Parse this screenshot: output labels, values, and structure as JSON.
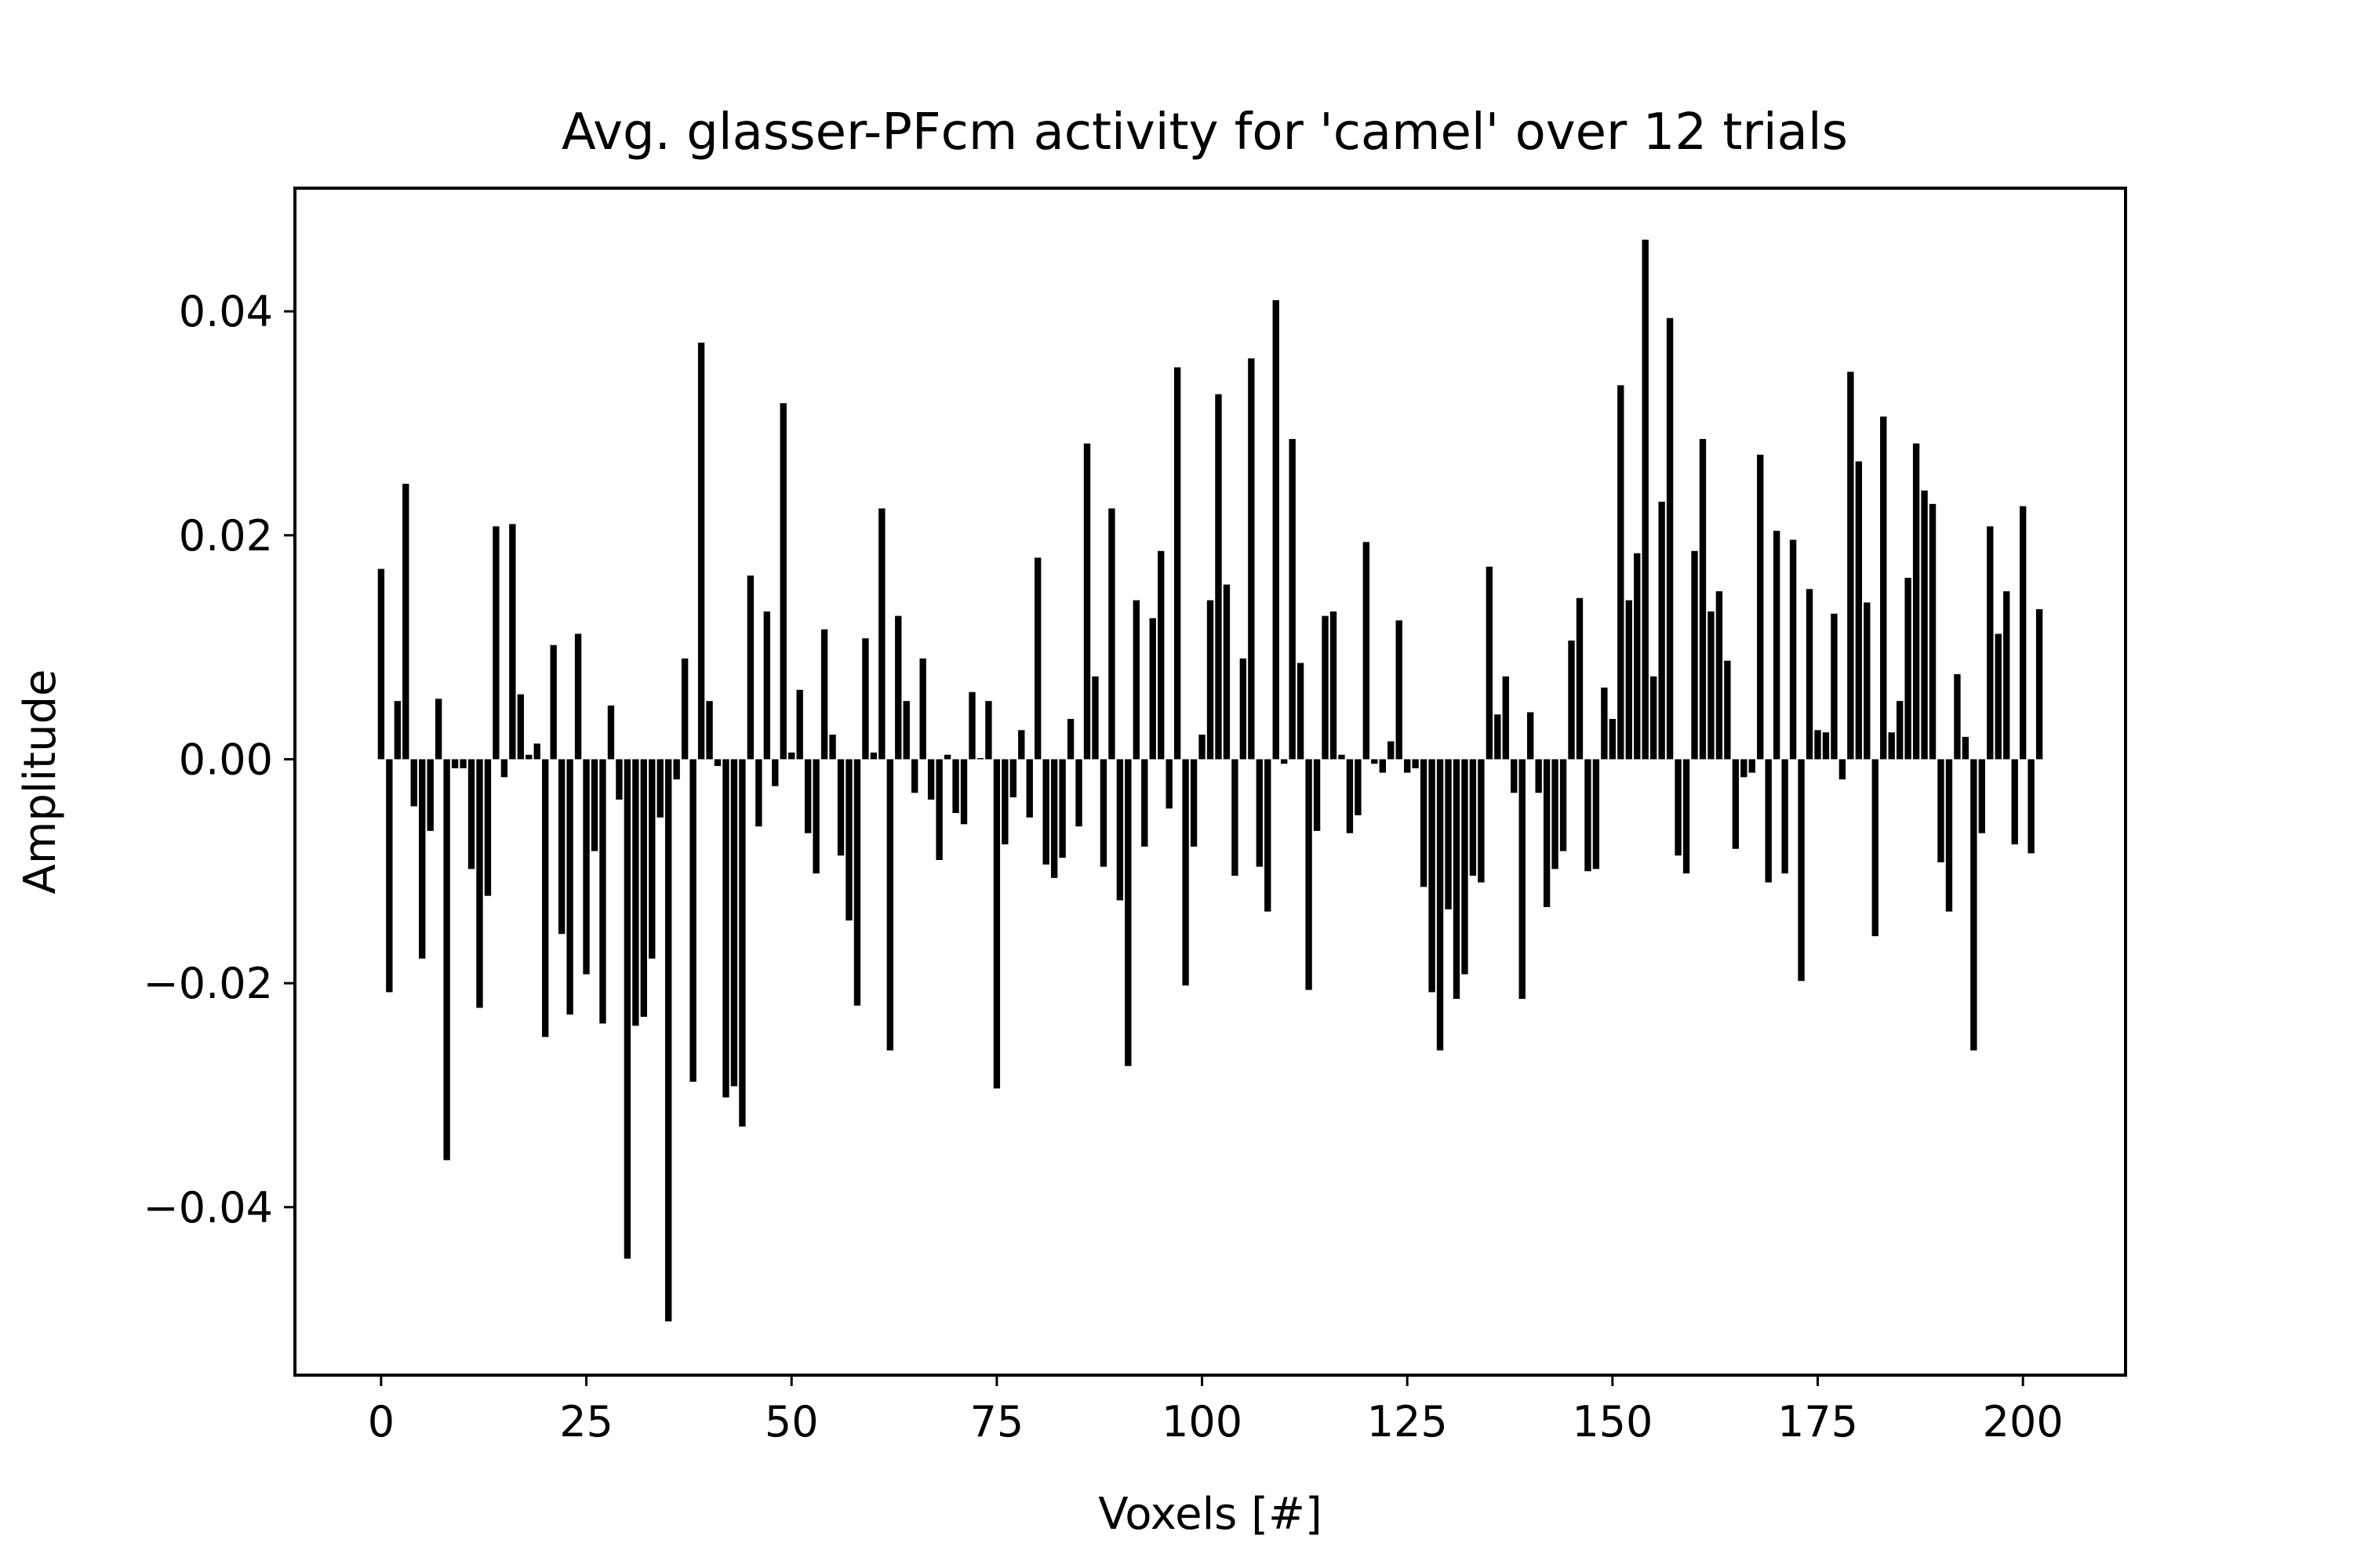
{
  "chart_data": {
    "type": "bar",
    "title": "Avg. glasser-PFcm activity for 'camel' over 12 trials",
    "xlabel": "Voxels [#]",
    "ylabel": "Amplitude",
    "xlim": [
      -10.5,
      212.5
    ],
    "ylim": [
      -0.055,
      0.051
    ],
    "xticks": [
      0,
      25,
      50,
      75,
      100,
      125,
      150,
      175,
      200
    ],
    "xtick_labels": [
      "0",
      "25",
      "50",
      "75",
      "100",
      "125",
      "150",
      "175",
      "200"
    ],
    "yticks": [
      -0.04,
      -0.02,
      0.0,
      0.02,
      0.04
    ],
    "ytick_labels": [
      "−0.04",
      "−0.02",
      "0.00",
      "0.02",
      "0.04"
    ],
    "bar_color": "#000000",
    "grid": false,
    "x": [
      0,
      1,
      2,
      3,
      4,
      5,
      6,
      7,
      8,
      9,
      10,
      11,
      12,
      13,
      14,
      15,
      16,
      17,
      18,
      19,
      20,
      21,
      22,
      23,
      24,
      25,
      26,
      27,
      28,
      29,
      30,
      31,
      32,
      33,
      34,
      35,
      36,
      37,
      38,
      39,
      40,
      41,
      42,
      43,
      44,
      45,
      46,
      47,
      48,
      49,
      50,
      51,
      52,
      53,
      54,
      55,
      56,
      57,
      58,
      59,
      60,
      61,
      62,
      63,
      64,
      65,
      66,
      67,
      68,
      69,
      70,
      71,
      72,
      73,
      74,
      75,
      76,
      77,
      78,
      79,
      80,
      81,
      82,
      83,
      84,
      85,
      86,
      87,
      88,
      89,
      90,
      91,
      92,
      93,
      94,
      95,
      96,
      97,
      98,
      99,
      100,
      101,
      102,
      103,
      104,
      105,
      106,
      107,
      108,
      109,
      110,
      111,
      112,
      113,
      114,
      115,
      116,
      117,
      118,
      119,
      120,
      121,
      122,
      123,
      124,
      125,
      126,
      127,
      128,
      129,
      130,
      131,
      132,
      133,
      134,
      135,
      136,
      137,
      138,
      139,
      140,
      141,
      142,
      143,
      144,
      145,
      146,
      147,
      148,
      149,
      150,
      151,
      152,
      153,
      154,
      155,
      156,
      157,
      158,
      159,
      160,
      161,
      162,
      163,
      164,
      165,
      166,
      167,
      168,
      169,
      170,
      171,
      172,
      173,
      174,
      175,
      176,
      177,
      178,
      179,
      180,
      181,
      182,
      183,
      184,
      185,
      186,
      187,
      188,
      189,
      190,
      191,
      192,
      193,
      194,
      195,
      196,
      197,
      198,
      199,
      200,
      201,
      202
    ],
    "values": [
      0.017,
      -0.0208,
      0.0052,
      0.0246,
      -0.0042,
      -0.0178,
      -0.0064,
      0.0054,
      -0.0358,
      -0.0008,
      -0.0008,
      -0.0098,
      -0.0222,
      -0.0122,
      0.0208,
      -0.0016,
      0.021,
      0.0058,
      0.0004,
      0.0014,
      -0.0248,
      0.0102,
      -0.0156,
      -0.0228,
      0.0112,
      -0.0192,
      -0.0082,
      -0.0236,
      0.0048,
      -0.0036,
      -0.0446,
      -0.0238,
      -0.023,
      -0.0178,
      -0.0052,
      -0.0502,
      -0.0018,
      0.009,
      -0.0288,
      0.0372,
      0.0052,
      -0.0006,
      -0.0302,
      -0.0292,
      -0.0328,
      0.0164,
      -0.006,
      0.0132,
      -0.0024,
      0.0318,
      0.0006,
      0.0062,
      -0.0066,
      -0.0102,
      0.0116,
      0.0022,
      -0.0086,
      -0.0144,
      -0.022,
      0.0108,
      0.0006,
      0.0224,
      -0.026,
      0.0128,
      0.0052,
      -0.003,
      0.009,
      -0.0036,
      -0.009,
      0.0004,
      -0.0048,
      -0.0058,
      0.006,
      0.0001,
      0.0052,
      -0.0294,
      -0.0076,
      -0.0034,
      0.0026,
      -0.0052,
      0.018,
      -0.0094,
      -0.0106,
      -0.0088,
      0.0036,
      -0.006,
      0.0282,
      0.0074,
      -0.0096,
      0.0224,
      -0.0126,
      -0.0274,
      0.0142,
      -0.0078,
      0.0126,
      0.0186,
      -0.0044,
      0.035,
      -0.0202,
      -0.0078,
      0.0022,
      0.0142,
      0.0326,
      0.0156,
      -0.0104,
      0.009,
      0.0358,
      -0.0096,
      -0.0136,
      0.041,
      -0.0004,
      0.0286,
      0.0086,
      -0.0206,
      -0.0064,
      0.0128,
      0.0132,
      0.0004,
      -0.0066,
      -0.005,
      0.0194,
      -0.0004,
      -0.0012,
      0.0016,
      0.0124,
      -0.0012,
      -0.0008,
      -0.0114,
      -0.0208,
      -0.026,
      -0.0134,
      -0.0214,
      -0.0192,
      -0.0104,
      -0.011,
      0.0172,
      0.004,
      0.0074,
      -0.003,
      -0.0214,
      0.0042,
      -0.003,
      -0.0132,
      -0.0098,
      -0.0082,
      0.0106,
      0.0144,
      -0.01,
      -0.0098,
      0.0064,
      0.0036,
      0.0334,
      0.0142,
      0.0184,
      0.0464,
      0.0074,
      0.023,
      0.0394,
      -0.0086,
      -0.0102,
      0.0186,
      0.0286,
      0.0132,
      0.015,
      0.0088,
      -0.008,
      -0.0016,
      -0.0012,
      0.0272,
      -0.011,
      0.0204,
      -0.0102,
      0.0196,
      -0.0198,
      0.0152,
      0.0026,
      0.0024,
      0.013,
      -0.0018,
      0.0346,
      0.0266,
      0.014,
      -0.0158,
      0.0306,
      0.0024,
      0.0052,
      0.0162,
      0.0282,
      0.024,
      0.0228,
      -0.0092,
      -0.0136,
      0.0076,
      0.002,
      -0.026,
      -0.0066,
      0.0208,
      0.0112,
      0.015,
      -0.0076,
      0.0226,
      -0.0084,
      0.0134
    ]
  }
}
